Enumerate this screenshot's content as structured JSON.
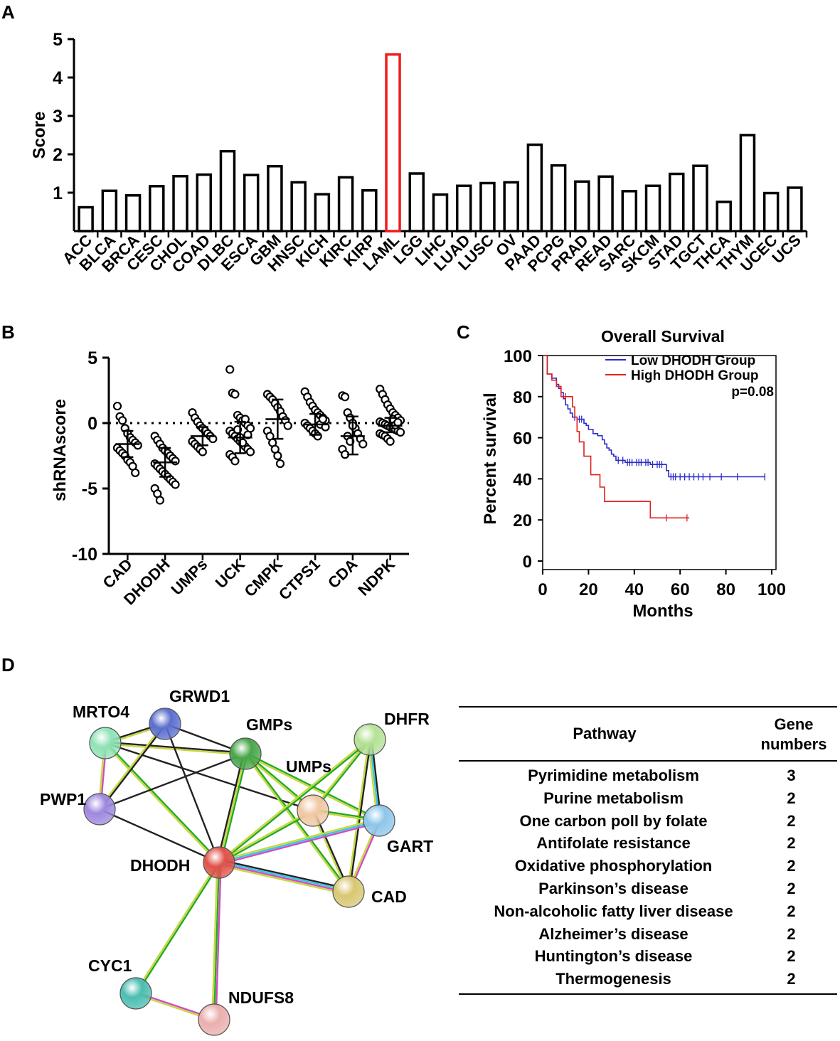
{
  "panels": {
    "a": "A",
    "b": "B",
    "c": "C",
    "d": "D"
  },
  "colors": {
    "highlight": "#ee1c1c",
    "low": "#2b2bc8",
    "high": "#e02020",
    "axis": "#000000"
  },
  "chart_data": [
    {
      "id": "A",
      "type": "bar",
      "title": "",
      "xlabel": "",
      "ylabel": "Score",
      "ylim": [
        0,
        5
      ],
      "yticks": [
        1,
        2,
        3,
        4,
        5
      ],
      "categories": [
        "ACC",
        "BLCA",
        "BRCA",
        "CESC",
        "CHOL",
        "COAD",
        "DLBC",
        "ESCA",
        "GBM",
        "HNSC",
        "KICH",
        "KIRC",
        "KIRP",
        "LAML",
        "LGG",
        "LIHC",
        "LUAD",
        "LUSC",
        "OV",
        "PAAD",
        "PCPG",
        "PRAD",
        "READ",
        "SARC",
        "SKCM",
        "STAD",
        "TGCT",
        "THCA",
        "THYM",
        "UCEC",
        "UCS"
      ],
      "values": [
        0.62,
        1.05,
        0.93,
        1.17,
        1.43,
        1.47,
        2.08,
        1.46,
        1.69,
        1.27,
        0.96,
        1.4,
        1.06,
        4.6,
        1.5,
        0.95,
        1.18,
        1.25,
        1.27,
        2.25,
        1.71,
        1.29,
        1.42,
        1.04,
        1.18,
        1.49,
        1.7,
        0.76,
        2.5,
        0.99,
        1.13
      ],
      "highlight": "LAML"
    },
    {
      "id": "B",
      "type": "scatter",
      "title": "",
      "ylabel": "shRNAscore",
      "ylim": [
        -10,
        5
      ],
      "yticks": [
        5,
        0,
        -5,
        -10
      ],
      "reference_line": 0,
      "categories": [
        "CAD",
        "DHODH",
        "UMPs",
        "UCK",
        "CMPK",
        "CTPS1",
        "CDA",
        "NDPK"
      ],
      "summary": [
        {
          "mean": -1.6,
          "sd_low": -2.6,
          "sd_high": -0.6
        },
        {
          "mean": -3.0,
          "sd_low": -4.1,
          "sd_high": -1.9
        },
        {
          "mean": -1.0,
          "sd_low": -1.7,
          "sd_high": -0.3
        },
        {
          "mean": -1.1,
          "sd_low": -2.3,
          "sd_high": 0.1
        },
        {
          "mean": 0.3,
          "sd_low": -1.2,
          "sd_high": 1.8
        },
        {
          "mean": -0.1,
          "sd_low": -0.9,
          "sd_high": 0.7
        },
        {
          "mean": -1.0,
          "sd_low": -2.4,
          "sd_high": 0.5
        },
        {
          "mean": -0.2,
          "sd_low": -0.7,
          "sd_high": 0.4
        }
      ],
      "points": [
        [
          1.3,
          0.5,
          0.2,
          -0.4,
          -0.8,
          -1.1,
          -1.3,
          -1.5,
          -1.7,
          -1.9,
          -2.1,
          -2.3,
          -2.5,
          -2.8,
          -3.0,
          -3.3,
          -3.8
        ],
        [
          -1.0,
          -1.3,
          -1.6,
          -1.9,
          -2.1,
          -2.3,
          -2.5,
          -2.7,
          -2.9,
          -3.1,
          -3.3,
          -3.5,
          -3.7,
          -3.9,
          -4.1,
          -4.3,
          -4.5,
          -4.7,
          -5.0,
          -5.4,
          -5.9
        ],
        [
          0.8,
          0.4,
          0.1,
          -0.2,
          -0.4,
          -0.6,
          -0.8,
          -1.0,
          -1.2,
          -1.4,
          -1.6,
          -1.8,
          -2.0,
          -2.2
        ],
        [
          4.1,
          2.3,
          2.2,
          0.6,
          0.4,
          0.2,
          0.0,
          -0.2,
          -0.4,
          -0.6,
          -0.8,
          -1.0,
          -1.2,
          -1.4,
          -1.6,
          -1.8,
          -2.0,
          -2.2,
          -2.4,
          -2.6,
          -2.9,
          -0.5,
          -1.1,
          -1.5,
          0.3,
          -0.9
        ],
        [
          2.2,
          2.0,
          1.8,
          1.5,
          1.2,
          0.9,
          0.5,
          0.2,
          -0.2,
          -0.6,
          -1.0,
          -1.5,
          -2.0,
          -2.5,
          -3.1
        ],
        [
          2.4,
          2.0,
          1.6,
          1.3,
          1.0,
          0.8,
          0.6,
          0.4,
          0.2,
          0.0,
          -0.2,
          -0.4,
          -0.6,
          -0.8,
          -1.0,
          -0.1,
          0.3,
          -0.3
        ],
        [
          2.1,
          2.0,
          0.8,
          0.4,
          0.0,
          -0.4,
          -0.8,
          -1.2,
          -1.6,
          -2.0,
          -2.4,
          -1.0,
          -1.4,
          -0.2
        ],
        [
          2.6,
          2.2,
          1.8,
          1.4,
          1.1,
          0.8,
          0.6,
          0.4,
          0.2,
          0.1,
          0.0,
          -0.1,
          -0.2,
          -0.3,
          -0.4,
          -0.5,
          -0.6,
          -0.7,
          -0.8,
          -0.9,
          -1.0,
          -1.2,
          -1.4,
          0.3,
          -0.15,
          0.05
        ]
      ]
    },
    {
      "id": "C",
      "type": "line",
      "title": "Overall Survival",
      "xlabel": "Months",
      "ylabel": "Percent survival",
      "xlim": [
        0,
        100
      ],
      "ylim": [
        0,
        100
      ],
      "xticks": [
        0,
        20,
        40,
        60,
        80,
        100
      ],
      "yticks": [
        0,
        20,
        40,
        60,
        80,
        100
      ],
      "legend": [
        "Low DHODH Group",
        "High DHODH Group"
      ],
      "annotation": "p=0.08",
      "series": [
        {
          "name": "Low DHODH Group",
          "points": [
            [
              0,
              100
            ],
            [
              2,
              100
            ],
            [
              2,
              91
            ],
            [
              4,
              91
            ],
            [
              4,
              89
            ],
            [
              6,
              89
            ],
            [
              6,
              86
            ],
            [
              7,
              86
            ],
            [
              7,
              84
            ],
            [
              8,
              84
            ],
            [
              8,
              82
            ],
            [
              9,
              82
            ],
            [
              9,
              79
            ],
            [
              10,
              79
            ],
            [
              10,
              76
            ],
            [
              11,
              76
            ],
            [
              11,
              74
            ],
            [
              12,
              74
            ],
            [
              12,
              72
            ],
            [
              13,
              72
            ],
            [
              13,
              70
            ],
            [
              15,
              70
            ],
            [
              15,
              69
            ],
            [
              18,
              69
            ],
            [
              18,
              67
            ],
            [
              19,
              67
            ],
            [
              19,
              66
            ],
            [
              20,
              66
            ],
            [
              20,
              64
            ],
            [
              22,
              64
            ],
            [
              22,
              62
            ],
            [
              24,
              62
            ],
            [
              24,
              61
            ],
            [
              26,
              61
            ],
            [
              26,
              59
            ],
            [
              27,
              59
            ],
            [
              27,
              57
            ],
            [
              28,
              57
            ],
            [
              28,
              55
            ],
            [
              29,
              55
            ],
            [
              29,
              54
            ],
            [
              30,
              54
            ],
            [
              30,
              52
            ],
            [
              31,
              52
            ],
            [
              31,
              51
            ],
            [
              32,
              51
            ],
            [
              32,
              49
            ],
            [
              36,
              49
            ],
            [
              36,
              48
            ],
            [
              40,
              48
            ],
            [
              40,
              48
            ],
            [
              44,
              48
            ],
            [
              44,
              48
            ],
            [
              47,
              48
            ],
            [
              47,
              47
            ],
            [
              54,
              47
            ],
            [
              54,
              44
            ],
            [
              55,
              44
            ],
            [
              55,
              41
            ],
            [
              97,
              41
            ]
          ],
          "censors": [
            [
              14,
              70
            ],
            [
              16,
              69
            ],
            [
              17,
              69
            ],
            [
              33,
              49
            ],
            [
              35,
              49
            ],
            [
              37,
              48
            ],
            [
              38,
              48
            ],
            [
              39,
              48
            ],
            [
              41,
              48
            ],
            [
              42,
              48
            ],
            [
              43,
              48
            ],
            [
              45,
              48
            ],
            [
              46,
              48
            ],
            [
              48,
              47
            ],
            [
              50,
              47
            ],
            [
              51,
              47
            ],
            [
              52,
              47
            ],
            [
              56,
              41
            ],
            [
              57,
              41
            ],
            [
              58,
              41
            ],
            [
              60,
              41
            ],
            [
              62,
              41
            ],
            [
              64,
              41
            ],
            [
              66,
              41
            ],
            [
              68,
              41
            ],
            [
              70,
              41
            ],
            [
              73,
              41
            ],
            [
              78,
              41
            ],
            [
              85,
              41
            ],
            [
              97,
              41
            ]
          ]
        },
        {
          "name": "High DHODH Group",
          "points": [
            [
              0,
              100
            ],
            [
              2,
              100
            ],
            [
              2,
              91
            ],
            [
              4,
              91
            ],
            [
              4,
              88
            ],
            [
              6,
              88
            ],
            [
              6,
              85
            ],
            [
              8,
              85
            ],
            [
              8,
              80
            ],
            [
              13,
              80
            ],
            [
              13,
              75
            ],
            [
              14,
              75
            ],
            [
              14,
              70
            ],
            [
              15,
              70
            ],
            [
              15,
              63
            ],
            [
              16,
              63
            ],
            [
              16,
              58
            ],
            [
              18,
              58
            ],
            [
              18,
              51
            ],
            [
              21,
              51
            ],
            [
              21,
              42
            ],
            [
              25,
              42
            ],
            [
              25,
              36
            ],
            [
              27,
              36
            ],
            [
              27,
              29
            ],
            [
              47,
              29
            ],
            [
              47,
              21
            ],
            [
              64,
              21
            ]
          ],
          "censors": [
            [
              10,
              80
            ],
            [
              54,
              21
            ],
            [
              63,
              21
            ]
          ]
        }
      ]
    }
  ],
  "network": {
    "center": "DHODH",
    "nodes": [
      {
        "id": "MRTO4",
        "label": "MRTO4",
        "color": "#8fe3b6"
      },
      {
        "id": "GRWD1",
        "label": "GRWD1",
        "color": "#5b6fcf"
      },
      {
        "id": "GMPs",
        "label": "GMPs",
        "color": "#49a64b"
      },
      {
        "id": "DHFR",
        "label": "DHFR",
        "color": "#b4e196"
      },
      {
        "id": "PWP1",
        "label": "PWP1",
        "color": "#9e88dd"
      },
      {
        "id": "UMPs",
        "label": "UMPs",
        "color": "#f0c8a4"
      },
      {
        "id": "GART",
        "label": "GART",
        "color": "#8ec6ea"
      },
      {
        "id": "DHODH",
        "label": "DHODH",
        "color": "#e0524a"
      },
      {
        "id": "CAD",
        "label": "CAD",
        "color": "#d8c772"
      },
      {
        "id": "CYC1",
        "label": "CYC1",
        "color": "#4cbdb2"
      },
      {
        "id": "NDUFS8",
        "label": "NDUFS8",
        "color": "#eaaeae"
      }
    ]
  },
  "table": {
    "headers": {
      "pathway": "Pathway",
      "gene_line1": "Gene",
      "gene_line2": "numbers"
    },
    "rows": [
      {
        "pathway": "Pyrimidine metabolism",
        "genes": "3"
      },
      {
        "pathway": "Purine metabolism",
        "genes": "2"
      },
      {
        "pathway": "One carbon poll by folate",
        "genes": "2"
      },
      {
        "pathway": "Antifolate resistance",
        "genes": "2"
      },
      {
        "pathway": "Oxidative phosphorylation",
        "genes": "2"
      },
      {
        "pathway": "Parkinson’s disease",
        "genes": "2"
      },
      {
        "pathway": "Non-alcoholic fatty liver disease",
        "genes": "2"
      },
      {
        "pathway": "Alzheimer’s disease",
        "genes": "2"
      },
      {
        "pathway": "Huntington’s disease",
        "genes": "2"
      },
      {
        "pathway": "Thermogenesis",
        "genes": "2"
      }
    ]
  }
}
